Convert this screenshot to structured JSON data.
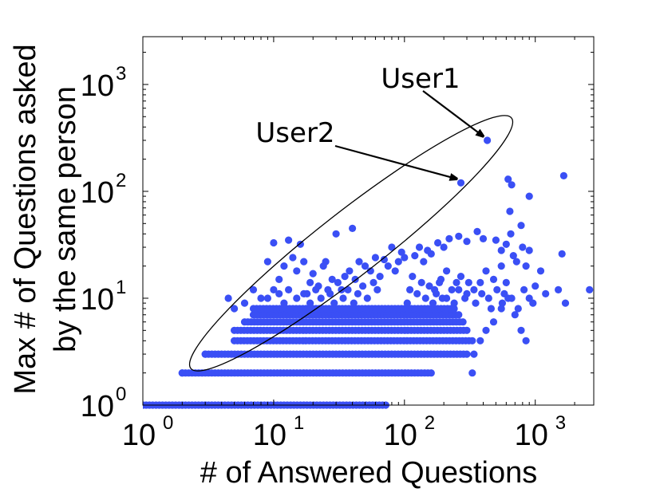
{
  "chart_data": {
    "type": "scatter",
    "xlabel": "# of Answered Questions",
    "ylabel_lines": [
      "Max # of Questions asked",
      "by the same person"
    ],
    "x_scale": "log",
    "y_scale": "log",
    "xlim": [
      1,
      2800
    ],
    "ylim": [
      1,
      2800
    ],
    "x_ticks": [
      {
        "base": "10",
        "exp": "0"
      },
      {
        "base": "10",
        "exp": "1"
      },
      {
        "base": "10",
        "exp": "2"
      },
      {
        "base": "10",
        "exp": "3"
      }
    ],
    "y_ticks": [
      {
        "base": "10",
        "exp": "0"
      },
      {
        "base": "10",
        "exp": "1"
      },
      {
        "base": "10",
        "exp": "2"
      },
      {
        "base": "10",
        "exp": "3"
      }
    ],
    "grid": false,
    "marker_color": "#3a4ff5",
    "annotations": [
      {
        "text": "User1",
        "x": 430,
        "y": 300
      },
      {
        "text": "User2",
        "x": 270,
        "y": 120
      }
    ],
    "horizontal_bands": [
      {
        "y": 1,
        "x_from": 1,
        "x_to": 72
      },
      {
        "y": 2,
        "x_from": 2,
        "x_to": 160
      },
      {
        "y": 3,
        "x_from": 3,
        "x_to": 300
      },
      {
        "y": 4,
        "x_from": 5,
        "x_to": 330
      },
      {
        "y": 5,
        "x_from": 5,
        "x_to": 300
      },
      {
        "y": 6,
        "x_from": 6,
        "x_to": 280
      },
      {
        "y": 7,
        "x_from": 7,
        "x_to": 260
      },
      {
        "y": 8,
        "x_from": 7,
        "x_to": 240
      }
    ],
    "points": [
      [
        1,
        1
      ],
      [
        2,
        1
      ],
      [
        2,
        2
      ],
      [
        3,
        1
      ],
      [
        3,
        3
      ],
      [
        330,
        2
      ],
      [
        340,
        3
      ],
      [
        380,
        4
      ],
      [
        420,
        5
      ],
      [
        480,
        6
      ],
      [
        550,
        8
      ],
      [
        850,
        4
      ],
      [
        780,
        5
      ],
      [
        700,
        7
      ],
      [
        620,
        10
      ],
      [
        900,
        10
      ],
      [
        1000,
        13
      ],
      [
        1200,
        11
      ],
      [
        1500,
        12
      ],
      [
        1700,
        9
      ],
      [
        2600,
        12
      ],
      [
        1600,
        26
      ],
      [
        1100,
        18
      ],
      [
        900,
        28
      ],
      [
        800,
        30
      ],
      [
        650,
        40
      ],
      [
        600,
        32
      ],
      [
        550,
        28
      ],
      [
        500,
        35
      ],
      [
        400,
        36
      ],
      [
        360,
        42
      ],
      [
        300,
        34
      ],
      [
        260,
        38
      ],
      [
        220,
        36
      ],
      [
        200,
        30
      ],
      [
        180,
        33
      ],
      [
        160,
        26
      ],
      [
        150,
        28
      ],
      [
        140,
        22
      ],
      [
        130,
        30
      ],
      [
        120,
        25
      ],
      [
        100,
        24
      ],
      [
        95,
        27
      ],
      [
        90,
        22
      ],
      [
        85,
        18
      ],
      [
        80,
        30
      ],
      [
        75,
        20
      ],
      [
        70,
        23
      ],
      [
        65,
        16
      ],
      [
        60,
        24
      ],
      [
        55,
        18
      ],
      [
        50,
        20
      ],
      [
        45,
        22
      ],
      [
        42,
        15
      ],
      [
        40,
        45
      ],
      [
        38,
        18
      ],
      [
        35,
        16
      ],
      [
        33,
        12
      ],
      [
        30,
        40
      ],
      [
        28,
        15
      ],
      [
        26,
        12
      ],
      [
        25,
        22
      ],
      [
        24,
        20
      ],
      [
        22,
        13
      ],
      [
        20,
        17
      ],
      [
        19,
        14
      ],
      [
        18,
        11
      ],
      [
        17,
        22
      ],
      [
        16,
        32
      ],
      [
        15,
        18
      ],
      [
        14,
        24
      ],
      [
        13,
        35
      ],
      [
        12,
        20
      ],
      [
        11,
        15
      ],
      [
        10,
        33
      ],
      [
        9,
        22
      ],
      [
        8,
        10
      ],
      [
        7,
        12
      ],
      [
        6,
        9
      ],
      [
        5,
        8
      ],
      [
        4.5,
        10
      ],
      [
        620,
        130
      ],
      [
        660,
        115
      ],
      [
        640,
        65
      ],
      [
        780,
        48
      ],
      [
        900,
        90
      ],
      [
        850,
        20
      ],
      [
        720,
        22
      ],
      [
        1650,
        140
      ],
      [
        680,
        25
      ],
      [
        550,
        20
      ],
      [
        480,
        15
      ],
      [
        420,
        18
      ],
      [
        380,
        14
      ],
      [
        340,
        12
      ],
      [
        300,
        11
      ],
      [
        270,
        16
      ],
      [
        250,
        14
      ],
      [
        230,
        12
      ],
      [
        210,
        10
      ],
      [
        190,
        15
      ],
      [
        170,
        12
      ],
      [
        110,
        12
      ],
      [
        105,
        9
      ],
      [
        115,
        16
      ],
      [
        125,
        11
      ],
      [
        135,
        14
      ],
      [
        145,
        10
      ],
      [
        155,
        13
      ],
      [
        165,
        9
      ],
      [
        175,
        11
      ],
      [
        185,
        14
      ],
      [
        195,
        10
      ],
      [
        210,
        18
      ],
      [
        240,
        9
      ],
      [
        260,
        12
      ],
      [
        290,
        10
      ],
      [
        310,
        14
      ],
      [
        350,
        9
      ],
      [
        390,
        11
      ],
      [
        440,
        10
      ],
      [
        460,
        8
      ],
      [
        510,
        12
      ],
      [
        560,
        9
      ],
      [
        580,
        11
      ],
      [
        600,
        14
      ],
      [
        660,
        10
      ],
      [
        740,
        8
      ],
      [
        820,
        12
      ],
      [
        960,
        9
      ],
      [
        62,
        12
      ],
      [
        58,
        14
      ],
      [
        52,
        10
      ],
      [
        48,
        13
      ],
      [
        44,
        11
      ],
      [
        41,
        9
      ],
      [
        37,
        12
      ],
      [
        34,
        10
      ],
      [
        31,
        14
      ],
      [
        29,
        9
      ],
      [
        27,
        11
      ],
      [
        23,
        10
      ],
      [
        21,
        12
      ],
      [
        19,
        9
      ],
      [
        17,
        11
      ],
      [
        15,
        10
      ],
      [
        13,
        12
      ],
      [
        12,
        9
      ],
      [
        11,
        11
      ],
      [
        10,
        12
      ],
      [
        9,
        10
      ],
      [
        430,
        300
      ],
      [
        270,
        120
      ]
    ]
  }
}
